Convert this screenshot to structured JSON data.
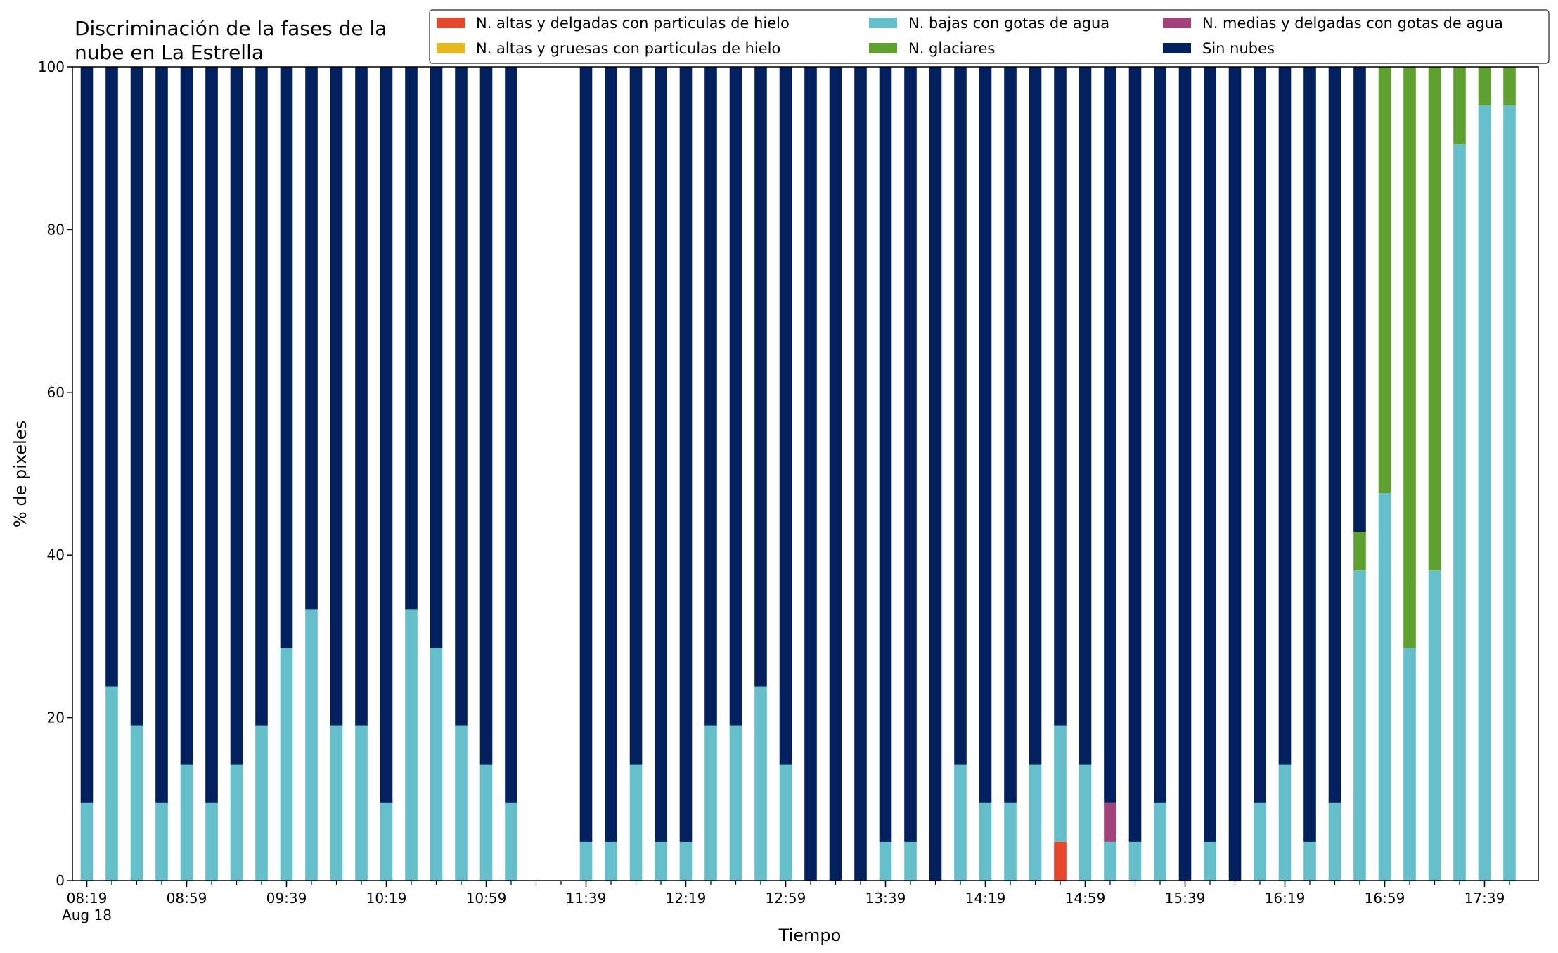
{
  "chart_data": {
    "type": "bar",
    "stacked": true,
    "title_lines": [
      "Discriminación de la fases de la",
      "nube en La Estrella"
    ],
    "xlabel": "Tiempo",
    "ylabel": "% de pixeles",
    "ylim": [
      0,
      100
    ],
    "yticks": [
      0,
      20,
      40,
      60,
      80,
      100
    ],
    "grid": false,
    "legend_position": "top-right",
    "x_major_ticks": [
      {
        "index": 0,
        "label": "08:19",
        "sublabel": "Aug 18"
      },
      {
        "index": 4,
        "label": "08:59"
      },
      {
        "index": 8,
        "label": "09:39"
      },
      {
        "index": 12,
        "label": "10:19"
      },
      {
        "index": 16,
        "label": "10:59"
      },
      {
        "index": 20,
        "label": "11:39"
      },
      {
        "index": 24,
        "label": "12:19"
      },
      {
        "index": 28,
        "label": "12:59"
      },
      {
        "index": 32,
        "label": "13:39"
      },
      {
        "index": 36,
        "label": "14:19"
      },
      {
        "index": 40,
        "label": "14:59"
      },
      {
        "index": 44,
        "label": "15:39"
      },
      {
        "index": 48,
        "label": "16:19"
      },
      {
        "index": 52,
        "label": "16:59"
      },
      {
        "index": 56,
        "label": "17:39"
      }
    ],
    "categories": [
      "08:19",
      "08:29",
      "08:39",
      "08:49",
      "08:59",
      "09:09",
      "09:19",
      "09:29",
      "09:39",
      "09:49",
      "09:59",
      "10:09",
      "10:19",
      "10:29",
      "10:39",
      "10:49",
      "10:59",
      "11:09",
      "11:19",
      "11:29",
      "11:39",
      "11:49",
      "11:59",
      "12:09",
      "12:19",
      "12:29",
      "12:39",
      "12:49",
      "12:59",
      "13:09",
      "13:19",
      "13:29",
      "13:39",
      "13:49",
      "13:59",
      "14:09",
      "14:19",
      "14:29",
      "14:39",
      "14:49",
      "14:59",
      "15:09",
      "15:19",
      "15:29",
      "15:39",
      "15:49",
      "15:59",
      "16:09",
      "16:19",
      "16:29",
      "16:39",
      "16:49",
      "16:59",
      "17:09",
      "17:19",
      "17:29",
      "17:39",
      "17:49"
    ],
    "series": [
      {
        "name": "N. altas y delgadas con particulas de hielo",
        "color": "#e8462a",
        "values": [
          0,
          0,
          0,
          0,
          0,
          0,
          0,
          0,
          0,
          0,
          0,
          0,
          0,
          0,
          0,
          0,
          0,
          0,
          null,
          null,
          0,
          0,
          0,
          0,
          0,
          0,
          0,
          0,
          0,
          0,
          0,
          0,
          0,
          0,
          0,
          0,
          0,
          0,
          0,
          4.76,
          0,
          0,
          0,
          0,
          0,
          0,
          0,
          0,
          0,
          0,
          0,
          0,
          0,
          0,
          0,
          0,
          0,
          0
        ]
      },
      {
        "name": "N. altas y gruesas con particulas de hielo",
        "color": "#e6b81e",
        "values": [
          0,
          0,
          0,
          0,
          0,
          0,
          0,
          0,
          0,
          0,
          0,
          0,
          0,
          0,
          0,
          0,
          0,
          0,
          null,
          null,
          0,
          0,
          0,
          0,
          0,
          0,
          0,
          0,
          0,
          0,
          0,
          0,
          0,
          0,
          0,
          0,
          0,
          0,
          0,
          0,
          0,
          0,
          0,
          0,
          0,
          0,
          0,
          0,
          0,
          0,
          0,
          0,
          0,
          0,
          0,
          0,
          0,
          0
        ]
      },
      {
        "name": "N. bajas con gotas de agua",
        "color": "#64bfcb",
        "values": [
          9.52,
          23.81,
          19.05,
          9.52,
          14.29,
          9.52,
          14.29,
          19.05,
          28.57,
          33.33,
          19.05,
          19.05,
          9.52,
          33.33,
          28.57,
          19.05,
          14.29,
          9.52,
          null,
          null,
          4.76,
          4.76,
          14.29,
          4.76,
          4.76,
          19.05,
          19.05,
          23.81,
          14.29,
          0,
          0,
          0,
          4.76,
          4.76,
          0,
          14.29,
          9.52,
          9.52,
          14.29,
          14.29,
          14.29,
          4.76,
          4.76,
          9.52,
          0,
          4.76,
          0,
          9.52,
          14.29,
          4.76,
          9.52,
          38.1,
          47.62,
          28.57,
          38.1,
          90.48,
          95.24,
          95.24
        ]
      },
      {
        "name": "N. glaciares",
        "color": "#5ea12e",
        "values": [
          0,
          0,
          0,
          0,
          0,
          0,
          0,
          0,
          0,
          0,
          0,
          0,
          0,
          0,
          0,
          0,
          0,
          0,
          null,
          null,
          0,
          0,
          0,
          0,
          0,
          0,
          0,
          0,
          0,
          0,
          0,
          0,
          0,
          0,
          0,
          0,
          0,
          0,
          0,
          0,
          0,
          0,
          0,
          0,
          0,
          0,
          0,
          0,
          0,
          0,
          0,
          4.76,
          52.38,
          71.43,
          61.9,
          9.52,
          4.76,
          4.76
        ]
      },
      {
        "name": "N. medias y delgadas con gotas de agua",
        "color": "#a1427a",
        "values": [
          0,
          0,
          0,
          0,
          0,
          0,
          0,
          0,
          0,
          0,
          0,
          0,
          0,
          0,
          0,
          0,
          0,
          0,
          null,
          null,
          0,
          0,
          0,
          0,
          0,
          0,
          0,
          0,
          0,
          0,
          0,
          0,
          0,
          0,
          0,
          0,
          0,
          0,
          0,
          0,
          0,
          4.76,
          0,
          0,
          0,
          0,
          0,
          0,
          0,
          0,
          0,
          0,
          0,
          0,
          0,
          0,
          0,
          0
        ]
      },
      {
        "name": "Sin nubes",
        "color": "#03205e",
        "values": [
          90.48,
          76.19,
          80.95,
          90.48,
          85.71,
          90.48,
          85.71,
          80.95,
          71.43,
          66.67,
          80.95,
          80.95,
          90.48,
          66.67,
          71.43,
          80.95,
          85.71,
          90.48,
          null,
          null,
          95.24,
          95.24,
          85.71,
          95.24,
          95.24,
          80.95,
          80.95,
          76.19,
          85.71,
          100,
          100,
          100,
          95.24,
          95.24,
          100,
          85.71,
          90.48,
          90.48,
          85.71,
          80.95,
          85.71,
          90.48,
          95.24,
          90.48,
          100,
          95.24,
          100,
          90.48,
          85.71,
          95.24,
          90.48,
          57.14,
          0,
          0,
          0,
          0,
          0,
          0
        ]
      }
    ],
    "legend_layout": [
      [
        0,
        2,
        4
      ],
      [
        1,
        3,
        5
      ]
    ]
  }
}
